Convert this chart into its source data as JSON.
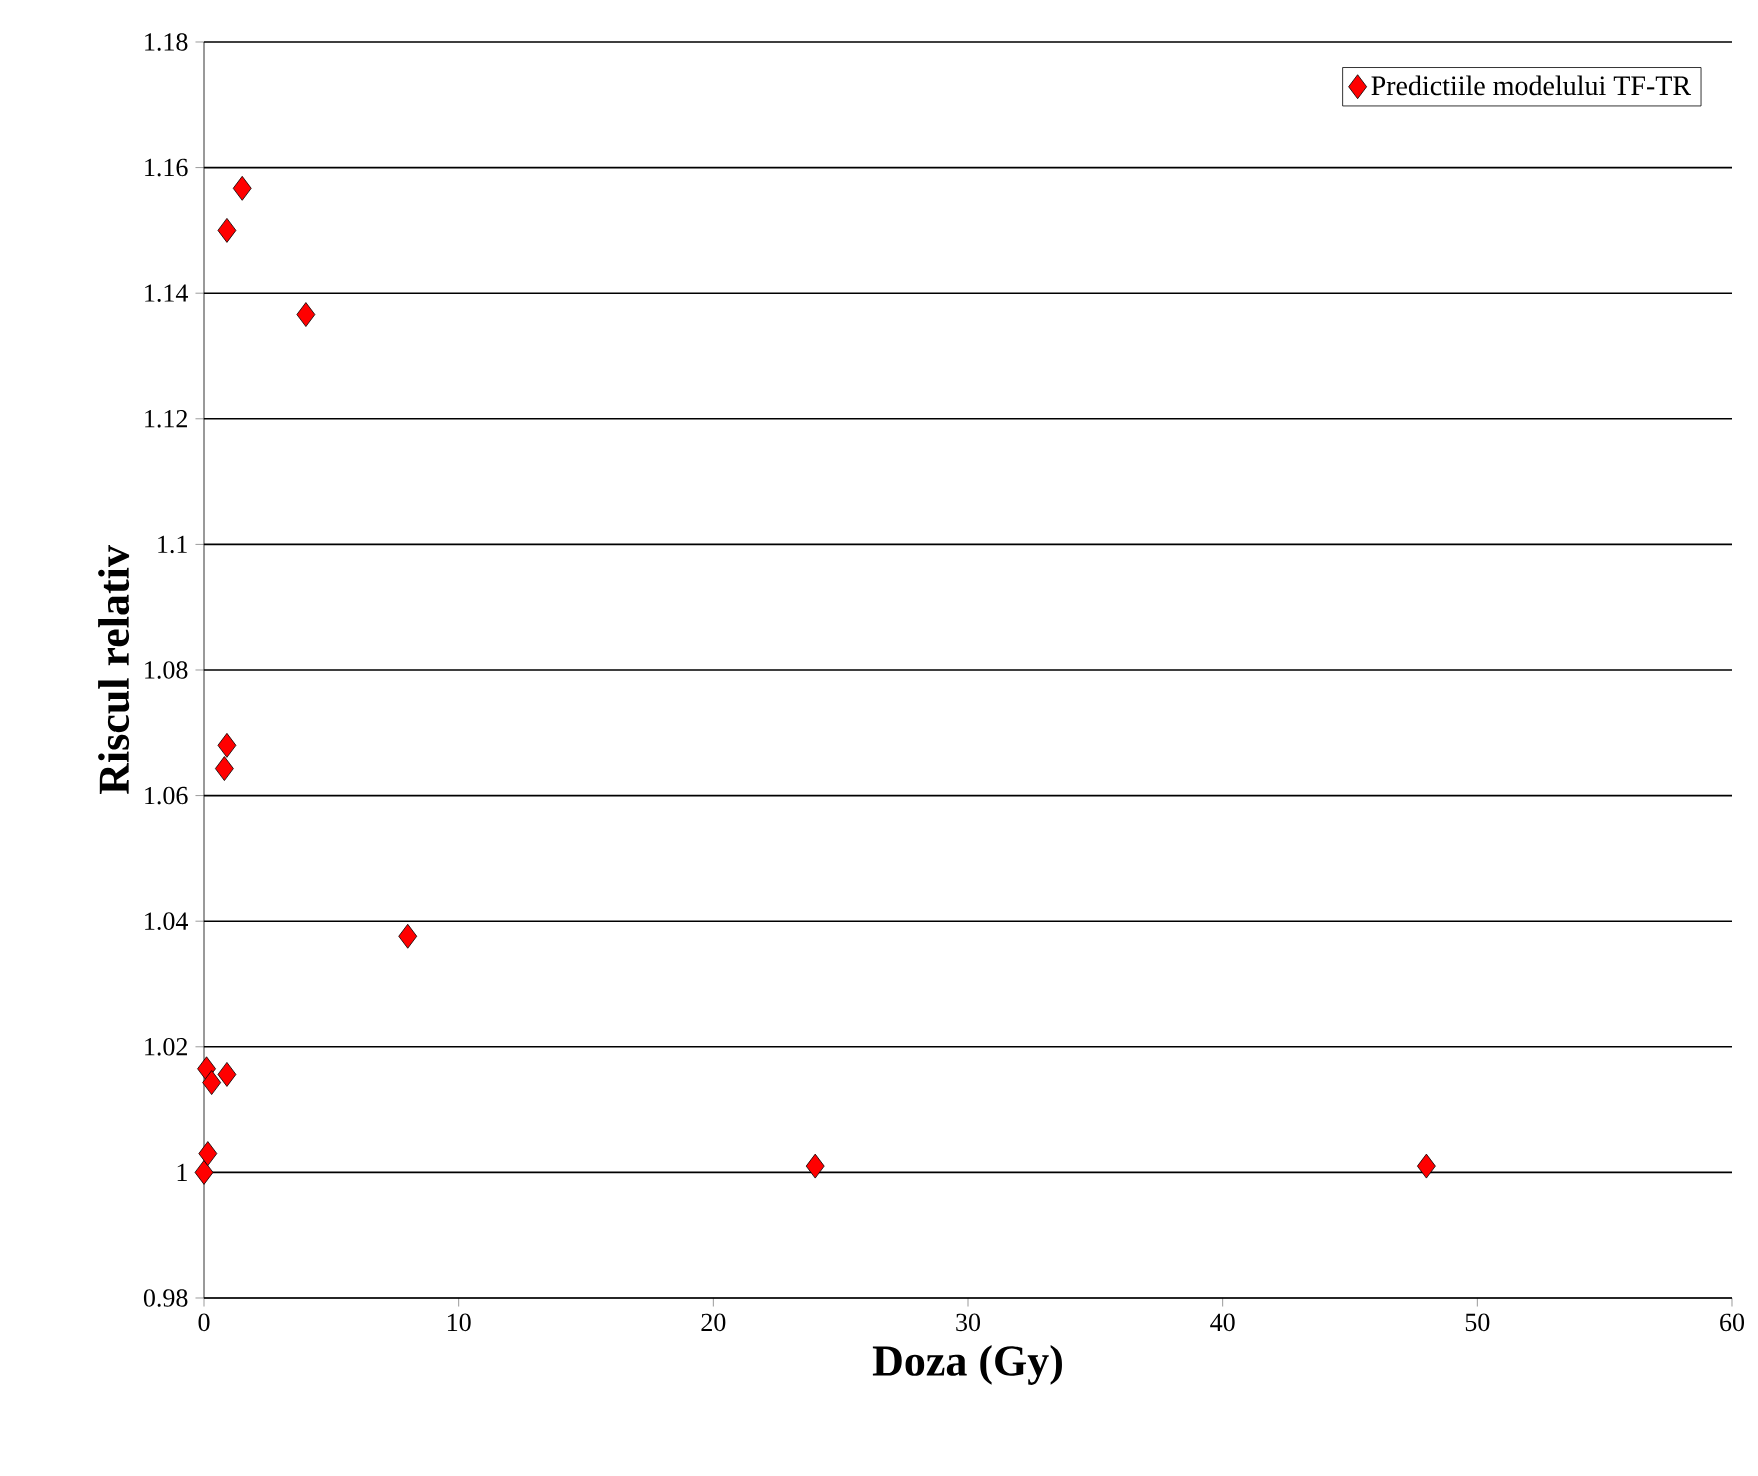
{
  "chart_data": {
    "type": "scatter",
    "xlabel": "Doza (Gy)",
    "ylabel": "Riscul relativ",
    "xlim": [
      0,
      60
    ],
    "xticks": [
      0,
      10,
      20,
      30,
      40,
      50,
      60
    ],
    "ylim": [
      0.98,
      1.18
    ],
    "yticks": [
      0.98,
      1,
      1.02,
      1.04,
      1.06,
      1.08,
      1.1,
      1.12,
      1.14,
      1.16,
      1.18
    ],
    "grid": "y",
    "legend": "top right",
    "marker": "diamond",
    "series": [
      {
        "name": "Predictiile modelului TF-TR",
        "color": "#ff0000",
        "x": [
          0,
          0.15,
          0.1,
          0.3,
          0.9,
          0.9,
          0.8,
          8,
          24,
          48,
          0.9,
          1.5,
          4
        ],
        "values": [
          1.0,
          1.003,
          1.0165,
          1.0143,
          1.0156,
          1.068,
          1.0643,
          1.0376,
          1.001,
          1.001,
          1.15,
          1.1567,
          1.1366
        ]
      }
    ]
  }
}
